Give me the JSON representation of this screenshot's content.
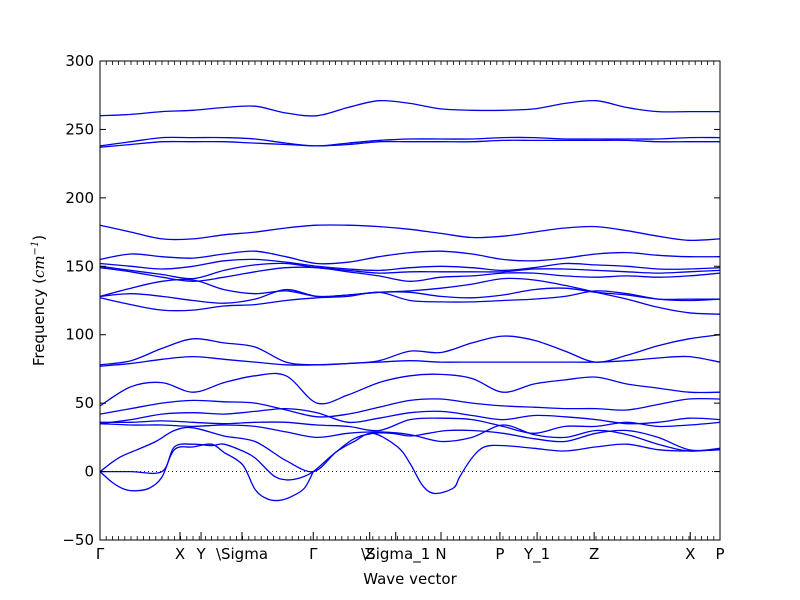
{
  "chart_data": {
    "type": "line",
    "xlabel": "Wave vector",
    "ylabel": "Frequency (cm⁻¹)",
    "ylabel_prefix": "Frequency (",
    "ylabel_unit": "cm",
    "ylabel_exp": "−1",
    "ylabel_suffix": ")",
    "ylim": [
      -50,
      300
    ],
    "yticks": [
      -50,
      0,
      50,
      100,
      150,
      200,
      250,
      300
    ],
    "xlim": [
      0,
      1
    ],
    "kpoints": [
      {
        "label": "Γ",
        "x": 0.0
      },
      {
        "label": "X",
        "x": 0.129
      },
      {
        "label": "Y",
        "x": 0.163
      },
      {
        "label": "\\Sigma",
        "x": 0.229
      },
      {
        "label": "Γ",
        "x": 0.344
      },
      {
        "label": "Z",
        "x": 0.435
      },
      {
        "label": "\\Sigma_1",
        "x": 0.477
      },
      {
        "label": "N",
        "x": 0.55
      },
      {
        "label": "P",
        "x": 0.645
      },
      {
        "label": "Y_1",
        "x": 0.705
      },
      {
        "label": "Z",
        "x": 0.797
      },
      {
        "label": "X",
        "x": 0.952
      },
      {
        "label": "P",
        "x": 1.0
      }
    ],
    "series": [
      {
        "x": [
          0,
          0.05,
          0.1,
          0.15,
          0.2,
          0.25,
          0.3,
          0.35,
          0.4,
          0.45,
          0.5,
          0.55,
          0.6,
          0.65,
          0.7,
          0.75,
          0.8,
          0.85,
          0.9,
          0.95,
          1.0
        ],
        "y": [
          260,
          261,
          263,
          264,
          266,
          267,
          262,
          260,
          266,
          271,
          269,
          265,
          264,
          264,
          265,
          269,
          271,
          266,
          263,
          263,
          263
        ]
      },
      {
        "x": [
          0,
          0.05,
          0.1,
          0.15,
          0.2,
          0.25,
          0.3,
          0.35,
          0.4,
          0.45,
          0.5,
          0.55,
          0.6,
          0.65,
          0.7,
          0.75,
          0.8,
          0.85,
          0.9,
          0.95,
          1.0
        ],
        "y": [
          238,
          241,
          244,
          244,
          244,
          243,
          240,
          238,
          240,
          242,
          243,
          243,
          243,
          244,
          244,
          243,
          243,
          243,
          243,
          244,
          244
        ]
      },
      {
        "x": [
          0,
          0.05,
          0.1,
          0.15,
          0.2,
          0.25,
          0.3,
          0.35,
          0.4,
          0.45,
          0.5,
          0.55,
          0.6,
          0.65,
          0.7,
          0.75,
          0.8,
          0.85,
          0.9,
          0.95,
          1.0
        ],
        "y": [
          237,
          239,
          241,
          241,
          241,
          240,
          239,
          238,
          239,
          241,
          241,
          241,
          241,
          242,
          242,
          242,
          242,
          242,
          241,
          241,
          241
        ]
      },
      {
        "x": [
          0,
          0.05,
          0.1,
          0.15,
          0.2,
          0.25,
          0.3,
          0.35,
          0.4,
          0.45,
          0.5,
          0.55,
          0.6,
          0.65,
          0.7,
          0.75,
          0.8,
          0.85,
          0.9,
          0.95,
          1.0
        ],
        "y": [
          180,
          175,
          170,
          170,
          173,
          175,
          178,
          180,
          180,
          179,
          177,
          174,
          171,
          172,
          175,
          178,
          179,
          176,
          172,
          169,
          170
        ]
      },
      {
        "x": [
          0,
          0.05,
          0.1,
          0.15,
          0.2,
          0.25,
          0.3,
          0.35,
          0.4,
          0.45,
          0.5,
          0.55,
          0.6,
          0.65,
          0.7,
          0.75,
          0.8,
          0.85,
          0.9,
          0.95,
          1.0
        ],
        "y": [
          155,
          159,
          157,
          156,
          159,
          161,
          157,
          152,
          153,
          157,
          160,
          161,
          159,
          155,
          154,
          156,
          159,
          160,
          158,
          157,
          157
        ]
      },
      {
        "x": [
          0,
          0.05,
          0.1,
          0.15,
          0.2,
          0.25,
          0.3,
          0.35,
          0.4,
          0.45,
          0.5,
          0.55,
          0.6,
          0.65,
          0.7,
          0.75,
          0.8,
          0.85,
          0.9,
          0.95,
          1.0
        ],
        "y": [
          152,
          150,
          148,
          150,
          154,
          155,
          153,
          150,
          148,
          147,
          149,
          150,
          149,
          147,
          149,
          152,
          151,
          150,
          148,
          148,
          149
        ]
      },
      {
        "x": [
          0,
          0.05,
          0.1,
          0.15,
          0.2,
          0.25,
          0.3,
          0.35,
          0.4,
          0.45,
          0.5,
          0.55,
          0.6,
          0.65,
          0.7,
          0.75,
          0.8,
          0.85,
          0.9,
          0.95,
          1.0
        ],
        "y": [
          150,
          147,
          144,
          141,
          147,
          151,
          152,
          149,
          147,
          145,
          146,
          146,
          146,
          146,
          148,
          148,
          147,
          146,
          145,
          146,
          147
        ]
      },
      {
        "x": [
          0,
          0.05,
          0.1,
          0.15,
          0.2,
          0.25,
          0.3,
          0.35,
          0.4,
          0.45,
          0.5,
          0.55,
          0.6,
          0.65,
          0.7,
          0.75,
          0.8,
          0.85,
          0.9,
          0.95,
          1.0
        ],
        "y": [
          149,
          146,
          142,
          139,
          142,
          146,
          149,
          149,
          146,
          143,
          139,
          142,
          143,
          145,
          145,
          143,
          142,
          143,
          142,
          143,
          145
        ]
      },
      {
        "x": [
          0,
          0.05,
          0.1,
          0.15,
          0.2,
          0.25,
          0.3,
          0.35,
          0.4,
          0.45,
          0.5,
          0.55,
          0.6,
          0.65,
          0.7,
          0.75,
          0.8,
          0.85,
          0.9,
          0.95,
          1.0
        ],
        "y": [
          128,
          134,
          139,
          140,
          133,
          130,
          132,
          128,
          129,
          131,
          132,
          134,
          137,
          141,
          140,
          136,
          131,
          126,
          120,
          116,
          115
        ]
      },
      {
        "x": [
          0,
          0.05,
          0.1,
          0.15,
          0.2,
          0.25,
          0.3,
          0.35,
          0.4,
          0.45,
          0.5,
          0.55,
          0.6,
          0.65,
          0.7,
          0.75,
          0.8,
          0.85,
          0.9,
          0.95,
          1.0
        ],
        "y": [
          128,
          130,
          128,
          125,
          123,
          126,
          133,
          128,
          129,
          131,
          131,
          128,
          127,
          129,
          133,
          134,
          131,
          129,
          126,
          126,
          126
        ]
      },
      {
        "x": [
          0,
          0.05,
          0.1,
          0.15,
          0.2,
          0.25,
          0.3,
          0.35,
          0.4,
          0.45,
          0.5,
          0.55,
          0.6,
          0.65,
          0.7,
          0.75,
          0.8,
          0.85,
          0.9,
          0.95,
          1.0
        ],
        "y": [
          127,
          122,
          118,
          118,
          121,
          122,
          125,
          127,
          128,
          131,
          125,
          124,
          124,
          125,
          126,
          128,
          132,
          130,
          126,
          125,
          126
        ]
      },
      {
        "x": [
          0,
          0.05,
          0.1,
          0.15,
          0.2,
          0.25,
          0.3,
          0.35,
          0.4,
          0.45,
          0.5,
          0.55,
          0.6,
          0.65,
          0.7,
          0.75,
          0.8,
          0.85,
          0.9,
          0.95,
          1.0
        ],
        "y": [
          78,
          81,
          90,
          97,
          94,
          91,
          80,
          78,
          79,
          81,
          88,
          87,
          94,
          99,
          96,
          88,
          80,
          85,
          92,
          97,
          100
        ]
      },
      {
        "x": [
          0,
          0.05,
          0.1,
          0.15,
          0.2,
          0.25,
          0.3,
          0.35,
          0.4,
          0.45,
          0.5,
          0.55,
          0.6,
          0.65,
          0.7,
          0.75,
          0.8,
          0.85,
          0.9,
          0.95,
          1.0
        ],
        "y": [
          77,
          79,
          82,
          84,
          82,
          80,
          78,
          78,
          79,
          80,
          81,
          80,
          80,
          80,
          80,
          80,
          80,
          81,
          83,
          84,
          80
        ]
      },
      {
        "x": [
          0,
          0.05,
          0.1,
          0.15,
          0.2,
          0.25,
          0.3,
          0.35,
          0.4,
          0.45,
          0.5,
          0.55,
          0.6,
          0.65,
          0.7,
          0.75,
          0.8,
          0.85,
          0.9,
          0.95,
          1.0
        ],
        "y": [
          48,
          62,
          65,
          58,
          65,
          70,
          70,
          50,
          56,
          65,
          70,
          71,
          68,
          58,
          64,
          67,
          69,
          64,
          61,
          58,
          58
        ]
      },
      {
        "x": [
          0,
          0.05,
          0.1,
          0.15,
          0.2,
          0.25,
          0.3,
          0.35,
          0.4,
          0.45,
          0.5,
          0.55,
          0.6,
          0.65,
          0.7,
          0.75,
          0.8,
          0.85,
          0.9,
          0.95,
          1.0
        ],
        "y": [
          42,
          46,
          50,
          52,
          51,
          50,
          45,
          40,
          42,
          47,
          52,
          53,
          50,
          48,
          47,
          46,
          46,
          45,
          49,
          53,
          53
        ]
      },
      {
        "x": [
          0,
          0.05,
          0.1,
          0.15,
          0.2,
          0.25,
          0.3,
          0.35,
          0.4,
          0.45,
          0.5,
          0.55,
          0.6,
          0.65,
          0.7,
          0.75,
          0.8,
          0.85,
          0.9,
          0.95,
          1.0
        ],
        "y": [
          35,
          38,
          42,
          43,
          42,
          44,
          46,
          43,
          36,
          39,
          43,
          44,
          41,
          38,
          41,
          40,
          38,
          35,
          36,
          39,
          38
        ]
      },
      {
        "x": [
          0,
          0.05,
          0.1,
          0.15,
          0.2,
          0.25,
          0.3,
          0.35,
          0.4,
          0.45,
          0.5,
          0.55,
          0.6,
          0.65,
          0.7,
          0.75,
          0.8,
          0.85,
          0.9,
          0.95,
          1.0
        ],
        "y": [
          36,
          36,
          37,
          36,
          35,
          36,
          36,
          34,
          33,
          30,
          38,
          39,
          38,
          33,
          28,
          33,
          33,
          36,
          33,
          34,
          36
        ]
      },
      {
        "x": [
          0,
          0.05,
          0.1,
          0.15,
          0.2,
          0.25,
          0.3,
          0.35,
          0.4,
          0.45,
          0.5,
          0.55,
          0.6,
          0.65,
          0.7,
          0.75,
          0.8,
          0.85,
          0.9,
          0.95,
          1.0
        ],
        "y": [
          35,
          34,
          34,
          33,
          34,
          33,
          29,
          25,
          28,
          29,
          27,
          22,
          25,
          34,
          27,
          25,
          30,
          27,
          20,
          15,
          17
        ]
      },
      {
        "x": [
          0,
          0.03,
          0.06,
          0.09,
          0.12,
          0.15,
          0.2,
          0.25,
          0.3,
          0.344,
          0.38,
          0.41,
          0.44,
          0.47,
          0.5,
          0.53,
          0.56,
          0.6,
          0.65,
          0.7,
          0.75,
          0.8,
          0.85,
          0.9,
          0.95,
          1.0
        ],
        "y": [
          0,
          10,
          16,
          22,
          30,
          32,
          26,
          22,
          8,
          0,
          14,
          24,
          28,
          28,
          26,
          28,
          30,
          30,
          28,
          24,
          22,
          28,
          30,
          25,
          16,
          16
        ]
      },
      {
        "x": [
          0,
          0.02,
          0.04,
          0.06,
          0.08,
          0.1,
          0.12,
          0.15,
          0.18,
          0.2,
          0.23,
          0.25,
          0.27,
          0.29,
          0.31,
          0.33,
          0.344
        ],
        "y": [
          0,
          -8,
          -13,
          -14,
          -12,
          -4,
          16,
          18,
          20,
          14,
          5,
          -13,
          -20,
          -21,
          -18,
          -12,
          0
        ]
      },
      {
        "x": [
          0,
          0.05,
          0.1,
          0.12,
          0.15,
          0.18,
          0.2,
          0.23,
          0.25,
          0.28,
          0.3,
          0.32,
          0.344,
          0.38,
          0.41,
          0.44,
          0.48,
          0.5,
          0.52,
          0.54,
          0.57,
          0.58,
          0.6,
          0.62,
          0.65,
          0.7,
          0.75,
          0.8,
          0.85,
          0.9,
          0.95,
          1.0
        ],
        "y": [
          0,
          0,
          0,
          18,
          20,
          19,
          20,
          15,
          10,
          -3,
          -6,
          -5,
          0,
          14,
          22,
          28,
          18,
          6,
          -10,
          -16,
          -12,
          -4,
          10,
          18,
          19,
          17,
          15,
          18,
          20,
          16,
          15,
          16
        ]
      }
    ]
  }
}
